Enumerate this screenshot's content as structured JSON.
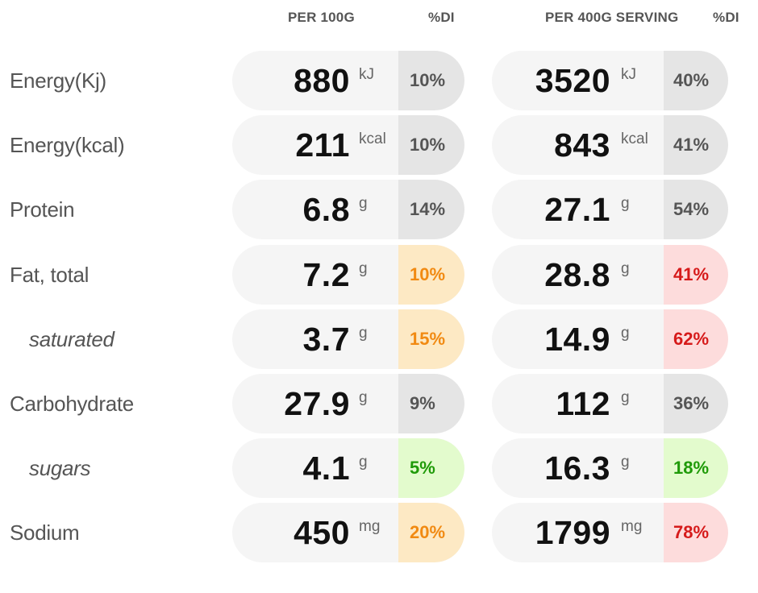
{
  "headers": {
    "per_100g": "PER 100G",
    "di_1": "%DI",
    "per_serving": "PER 400G SERVING",
    "di_2": "%DI"
  },
  "rows": [
    {
      "label": "Energy(Kj)",
      "sub": false,
      "v100": "880",
      "u100": "kJ",
      "di100": "10%",
      "c100": "grey",
      "vsrv": "3520",
      "usrv": "kJ",
      "disrv": "40%",
      "csrv": "grey"
    },
    {
      "label": "Energy(kcal)",
      "sub": false,
      "v100": "211",
      "u100": "kcal",
      "di100": "10%",
      "c100": "grey",
      "vsrv": "843",
      "usrv": "kcal",
      "disrv": "41%",
      "csrv": "grey"
    },
    {
      "label": "Protein",
      "sub": false,
      "v100": "6.8",
      "u100": "g",
      "di100": "14%",
      "c100": "grey",
      "vsrv": "27.1",
      "usrv": "g",
      "disrv": "54%",
      "csrv": "grey"
    },
    {
      "label": "Fat, total",
      "sub": false,
      "v100": "7.2",
      "u100": "g",
      "di100": "10%",
      "c100": "orange",
      "vsrv": "28.8",
      "usrv": "g",
      "disrv": "41%",
      "csrv": "red"
    },
    {
      "label": "saturated",
      "sub": true,
      "v100": "3.7",
      "u100": "g",
      "di100": "15%",
      "c100": "orange",
      "vsrv": "14.9",
      "usrv": "g",
      "disrv": "62%",
      "csrv": "red"
    },
    {
      "label": "Carbohydrate",
      "sub": false,
      "v100": "27.9",
      "u100": "g",
      "di100": "9%",
      "c100": "grey",
      "vsrv": "112",
      "usrv": "g",
      "disrv": "36%",
      "csrv": "grey"
    },
    {
      "label": "sugars",
      "sub": true,
      "v100": "4.1",
      "u100": "g",
      "di100": "5%",
      "c100": "green",
      "vsrv": "16.3",
      "usrv": "g",
      "disrv": "18%",
      "csrv": "green"
    },
    {
      "label": "Sodium",
      "sub": false,
      "v100": "450",
      "u100": "mg",
      "di100": "20%",
      "c100": "orange",
      "vsrv": "1799",
      "usrv": "mg",
      "disrv": "78%",
      "csrv": "red"
    }
  ],
  "colors": {
    "grey": "#555555",
    "orange": "#f18a12",
    "red": "#d61a1a",
    "green": "#1f9a08"
  }
}
